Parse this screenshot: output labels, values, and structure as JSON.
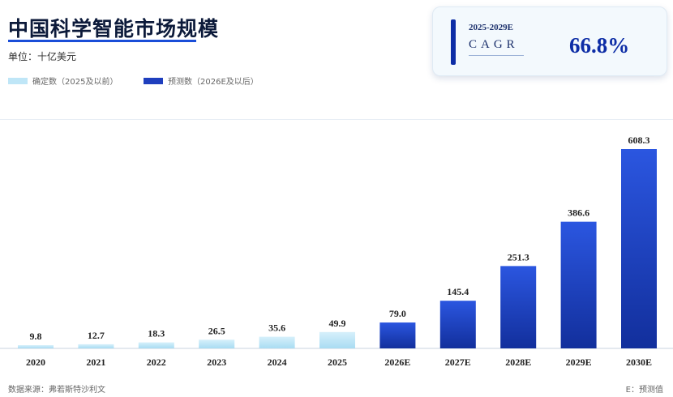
{
  "header": {
    "title": "中国科学智能市场规模",
    "unit": "单位：十亿美元"
  },
  "legend": {
    "actual": "确定数（2025及以前）",
    "forecast": "预测数（2026E及以后）"
  },
  "cagr": {
    "period": "2025-2029E",
    "label": "CAGR",
    "value": "66.8%"
  },
  "footer": {
    "source": "数据来源：弗若斯特沙利文",
    "note": "E：预测值"
  },
  "colors": {
    "actual_top": "#d6f0fb",
    "actual_bottom": "#a9dcf2",
    "forecast_top": "#2b56e0",
    "forecast_bottom": "#122f9c",
    "accent": "#0d2da6"
  },
  "chart_data": {
    "type": "bar",
    "title": "中国科学智能市场规模",
    "ylabel": "单位：十亿美元",
    "categories": [
      "2020",
      "2021",
      "2022",
      "2023",
      "2024",
      "2025",
      "2026E",
      "2027E",
      "2028E",
      "2029E",
      "2030E"
    ],
    "series": [
      {
        "name": "确定数（2025及以前）",
        "values": [
          9.8,
          12.7,
          18.3,
          26.5,
          35.6,
          49.9,
          null,
          null,
          null,
          null,
          null
        ]
      },
      {
        "name": "预测数（2026E及以后）",
        "values": [
          null,
          null,
          null,
          null,
          null,
          null,
          79.0,
          145.4,
          251.3,
          386.6,
          608.3
        ]
      }
    ],
    "value_labels": [
      "9.8",
      "12.7",
      "18.3",
      "26.5",
      "35.6",
      "49.9",
      "79.0",
      "145.4",
      "251.3",
      "386.6",
      "608.3"
    ],
    "ylim": [
      0,
      620
    ],
    "grid": false,
    "legend_position": "top-left"
  }
}
